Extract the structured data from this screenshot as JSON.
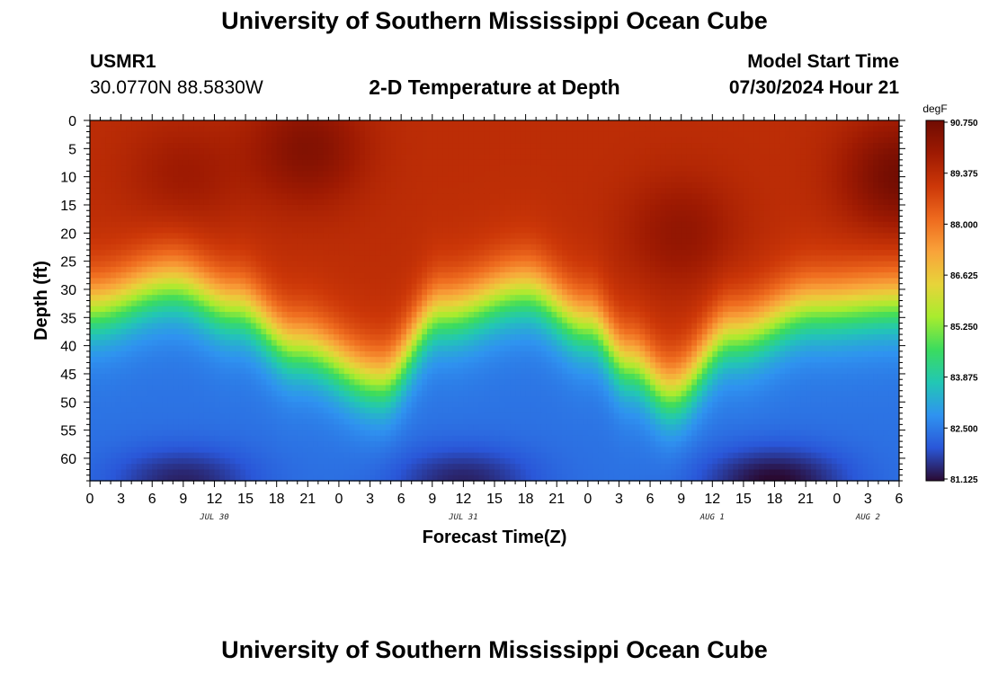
{
  "page": {
    "title": "University of Southern Mississippi Ocean Cube",
    "footer_title": "University of Southern Mississippi Ocean Cube",
    "station_id": "USMR1",
    "station_coords": "30.0770N  88.5830W",
    "subtitle": "2-D Temperature at Depth",
    "model_label": "Model Start Time",
    "model_time": "07/30/2024 Hour 21"
  },
  "chart_data": {
    "type": "heatmap",
    "title": "2-D Temperature at Depth",
    "xlabel": "Forecast Time(Z)",
    "ylabel": "Depth (ft)",
    "x_range_hours": [
      0,
      78
    ],
    "x_ticks": [
      "0",
      "3",
      "6",
      "9",
      "12",
      "15",
      "18",
      "21",
      "0",
      "3",
      "6",
      "9",
      "12",
      "15",
      "18",
      "21",
      "0",
      "3",
      "6",
      "9",
      "12",
      "15",
      "18",
      "21",
      "0",
      "3",
      "6"
    ],
    "x_date_labels": [
      {
        "label": "JUL 30",
        "at_hour": 12
      },
      {
        "label": "JUL 31",
        "at_hour": 36
      },
      {
        "label": "AUG 1",
        "at_hour": 60
      },
      {
        "label": "AUG 2",
        "at_hour": 75
      }
    ],
    "y_range_ft": [
      0,
      64
    ],
    "y_ticks": [
      0,
      5,
      10,
      15,
      20,
      25,
      30,
      35,
      40,
      45,
      50,
      55,
      60
    ],
    "colorbar": {
      "unit": "degF",
      "min": 81.125,
      "max": 90.75,
      "ticks": [
        "90.750",
        "89.375",
        "88.000",
        "86.625",
        "85.250",
        "83.875",
        "82.500",
        "81.125"
      ],
      "colors": [
        "#2a0a32",
        "#2a56d8",
        "#2f93f0",
        "#22c7b4",
        "#3bdc5e",
        "#a8ec2e",
        "#e7d43a",
        "#f9a33a",
        "#ee6a1e",
        "#cc3708",
        "#9e1a02",
        "#700c02"
      ]
    },
    "thermocline_depth_ft_by_hour": [
      {
        "hour": 0,
        "depth": 33
      },
      {
        "hour": 8,
        "depth": 29
      },
      {
        "hour": 14,
        "depth": 33
      },
      {
        "hour": 20,
        "depth": 40
      },
      {
        "hour": 28,
        "depth": 46
      },
      {
        "hour": 34,
        "depth": 34
      },
      {
        "hour": 42,
        "depth": 30
      },
      {
        "hour": 48,
        "depth": 36
      },
      {
        "hour": 52,
        "depth": 43
      },
      {
        "hour": 56,
        "depth": 48
      },
      {
        "hour": 62,
        "depth": 38
      },
      {
        "hour": 70,
        "depth": 33
      },
      {
        "hour": 78,
        "depth": 32
      }
    ],
    "warm_cores": [
      {
        "hour": 9,
        "depth": 10,
        "temp": 89.9
      },
      {
        "hour": 21,
        "depth": 5,
        "temp": 90.4
      },
      {
        "hour": 57,
        "depth": 20,
        "temp": 90.1
      },
      {
        "hour": 78,
        "depth": 10,
        "temp": 90.7
      }
    ],
    "cold_cores": [
      {
        "hour": 9,
        "depth": 64,
        "temp": 81.4
      },
      {
        "hour": 36,
        "depth": 64,
        "temp": 81.4
      },
      {
        "hour": 66,
        "depth": 64,
        "temp": 81.1
      }
    ]
  }
}
